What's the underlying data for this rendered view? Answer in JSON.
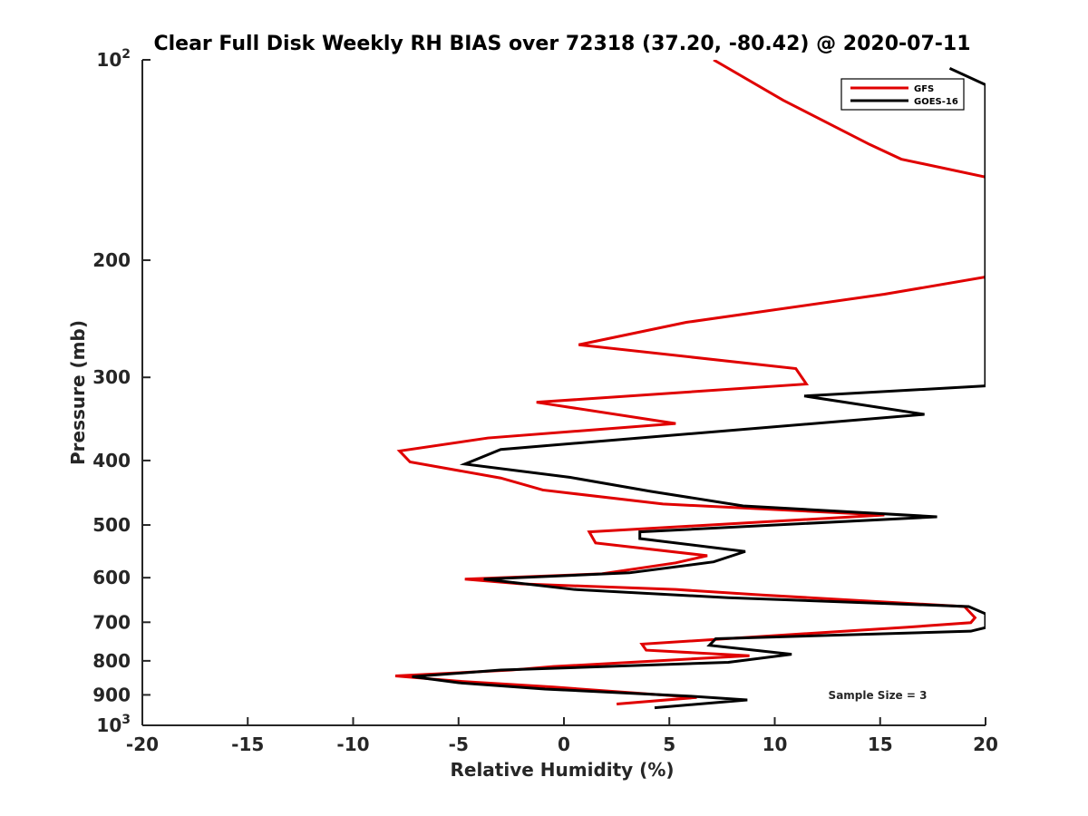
{
  "chart_data": {
    "type": "line",
    "title": "Clear Full Disk Weekly RH BIAS over 72318 (37.20, -80.42) @ 2020-07-11",
    "xlabel": "Relative Humidity (%)",
    "ylabel": "Pressure (mb)",
    "xlim": [
      -20,
      20
    ],
    "ylim": [
      1000,
      100
    ],
    "y_scale": "log",
    "y_reversed": true,
    "x_ticks": [
      -20,
      -15,
      -10,
      -5,
      0,
      5,
      10,
      15,
      20
    ],
    "x_tick_labels": [
      "-20",
      "-15",
      "-10",
      "-5",
      "0",
      "5",
      "10",
      "15",
      "20"
    ],
    "y_ticks": [
      100,
      200,
      300,
      400,
      500,
      600,
      700,
      800,
      900,
      1000
    ],
    "y_tick_labels": [
      {
        "base": "10",
        "exp": "2"
      },
      {
        "base": "200",
        "exp": ""
      },
      {
        "base": "300",
        "exp": ""
      },
      {
        "base": "400",
        "exp": ""
      },
      {
        "base": "500",
        "exp": ""
      },
      {
        "base": "600",
        "exp": ""
      },
      {
        "base": "700",
        "exp": ""
      },
      {
        "base": "800",
        "exp": ""
      },
      {
        "base": "900",
        "exp": ""
      },
      {
        "base": "10",
        "exp": "3"
      }
    ],
    "grid": false,
    "legend_position": "top-right",
    "annotation": "Sample Size = 3",
    "series": [
      {
        "name": "GFS",
        "color": "#e00000",
        "points": [
          [
            7.1,
            100
          ],
          [
            10.4,
            115
          ],
          [
            14.5,
            134
          ],
          [
            16.0,
            141
          ],
          [
            20.0,
            150
          ],
          [
            20.0,
            212
          ],
          [
            15.2,
            225
          ],
          [
            5.8,
            248
          ],
          [
            0.7,
            268
          ],
          [
            11.0,
            291
          ],
          [
            11.5,
            307
          ],
          [
            -1.3,
            327
          ],
          [
            5.3,
            352
          ],
          [
            -3.6,
            370
          ],
          [
            -7.8,
            387
          ],
          [
            -7.3,
            402
          ],
          [
            -3.0,
            425
          ],
          [
            -1.0,
            443
          ],
          [
            4.7,
            465
          ],
          [
            15.2,
            483
          ],
          [
            1.2,
            512
          ],
          [
            1.5,
            532
          ],
          [
            6.8,
            556
          ],
          [
            5.3,
            570
          ],
          [
            1.8,
            592
          ],
          [
            -4.7,
            603
          ],
          [
            -2.0,
            613
          ],
          [
            5.3,
            625
          ],
          [
            9.4,
            637
          ],
          [
            19.0,
            663
          ],
          [
            19.5,
            689
          ],
          [
            19.3,
            701
          ],
          [
            16.3,
            712
          ],
          [
            3.7,
            755
          ],
          [
            3.9,
            771
          ],
          [
            8.8,
            786
          ],
          [
            -0.5,
            816
          ],
          [
            -2.5,
            826
          ],
          [
            -8.0,
            843
          ],
          [
            -5.1,
            858
          ],
          [
            -0.5,
            876
          ],
          [
            6.3,
            908
          ],
          [
            2.5,
            929
          ]
        ]
      },
      {
        "name": "GOES-16",
        "color": "#000000",
        "points": [
          [
            18.3,
            103
          ],
          [
            20.0,
            109
          ],
          [
            20.0,
            309
          ],
          [
            11.4,
            320
          ],
          [
            17.1,
            341
          ],
          [
            -3.0,
            385
          ],
          [
            -4.7,
            405
          ],
          [
            0.3,
            424
          ],
          [
            4.1,
            445
          ],
          [
            8.5,
            468
          ],
          [
            17.7,
            486
          ],
          [
            3.6,
            512
          ],
          [
            3.6,
            524
          ],
          [
            8.6,
            548
          ],
          [
            7.1,
            568
          ],
          [
            3.1,
            590
          ],
          [
            -3.8,
            603
          ],
          [
            0.5,
            625
          ],
          [
            7.8,
            643
          ],
          [
            19.2,
            663
          ],
          [
            20.0,
            680
          ],
          [
            20.0,
            713
          ],
          [
            19.3,
            722
          ],
          [
            7.2,
            741
          ],
          [
            6.9,
            758
          ],
          [
            10.8,
            782
          ],
          [
            7.8,
            804
          ],
          [
            -3.0,
            826
          ],
          [
            -7.2,
            845
          ],
          [
            -5.0,
            863
          ],
          [
            -0.9,
            882
          ],
          [
            6.0,
            904
          ],
          [
            8.7,
            916
          ],
          [
            4.3,
            941
          ]
        ]
      }
    ]
  }
}
